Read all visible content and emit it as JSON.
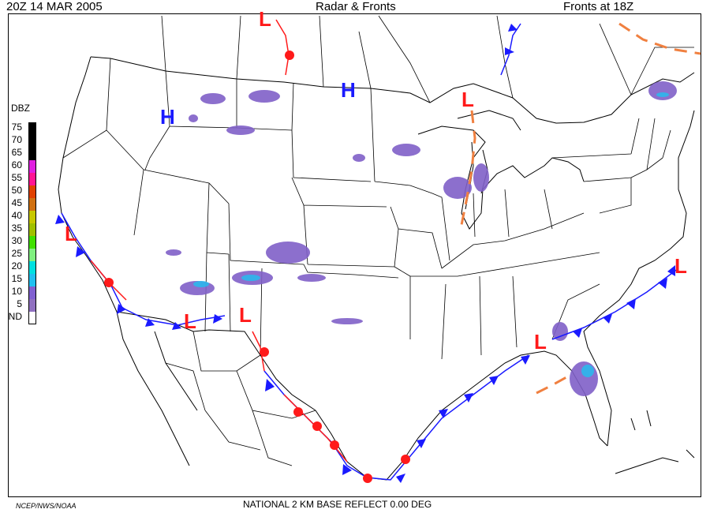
{
  "header": {
    "timestamp": "20Z  14 MAR  2005",
    "title": "Radar & Fronts",
    "subtitle": "Fronts at 18Z"
  },
  "footer": {
    "credit": "NCEP/NWS/NOAA",
    "product": "NATIONAL 2 KM BASE REFLECT 0.00 DEG"
  },
  "legend": {
    "title": "DBZ",
    "items": [
      {
        "label": "75",
        "color": "#000000"
      },
      {
        "label": "70",
        "color": "#000000"
      },
      {
        "label": "65",
        "color": "#000000"
      },
      {
        "label": "60",
        "color": "#e020e0"
      },
      {
        "label": "55",
        "color": "#ff1493"
      },
      {
        "label": "50",
        "color": "#e04000"
      },
      {
        "label": "45",
        "color": "#d07010"
      },
      {
        "label": "40",
        "color": "#c8c800"
      },
      {
        "label": "35",
        "color": "#a0c000"
      },
      {
        "label": "30",
        "color": "#40e000"
      },
      {
        "label": "25",
        "color": "#80f080"
      },
      {
        "label": "20",
        "color": "#00e0e0"
      },
      {
        "label": "15",
        "color": "#20c0f0"
      },
      {
        "label": "10",
        "color": "#8060d0"
      },
      {
        "label": "5",
        "color": "#9070c0"
      },
      {
        "label": "ND",
        "color": "#ffffff"
      }
    ]
  },
  "pressure_centers": [
    {
      "type": "H",
      "color": "#1a1aff"
    },
    {
      "type": "H",
      "color": "#1a1aff"
    },
    {
      "type": "L",
      "color": "#ff1a1a"
    },
    {
      "type": "L",
      "color": "#ff1a1a"
    },
    {
      "type": "L",
      "color": "#ff1a1a"
    },
    {
      "type": "L",
      "color": "#ff1a1a"
    },
    {
      "type": "L",
      "color": "#ff1a1a"
    },
    {
      "type": "L",
      "color": "#ff1a1a"
    },
    {
      "type": "L",
      "color": "#ff1a1a"
    }
  ],
  "front_colors": {
    "cold": "#1a1aff",
    "warm": "#ff1a1a",
    "trough": "#f08040"
  },
  "radar_color": "#8060c8"
}
